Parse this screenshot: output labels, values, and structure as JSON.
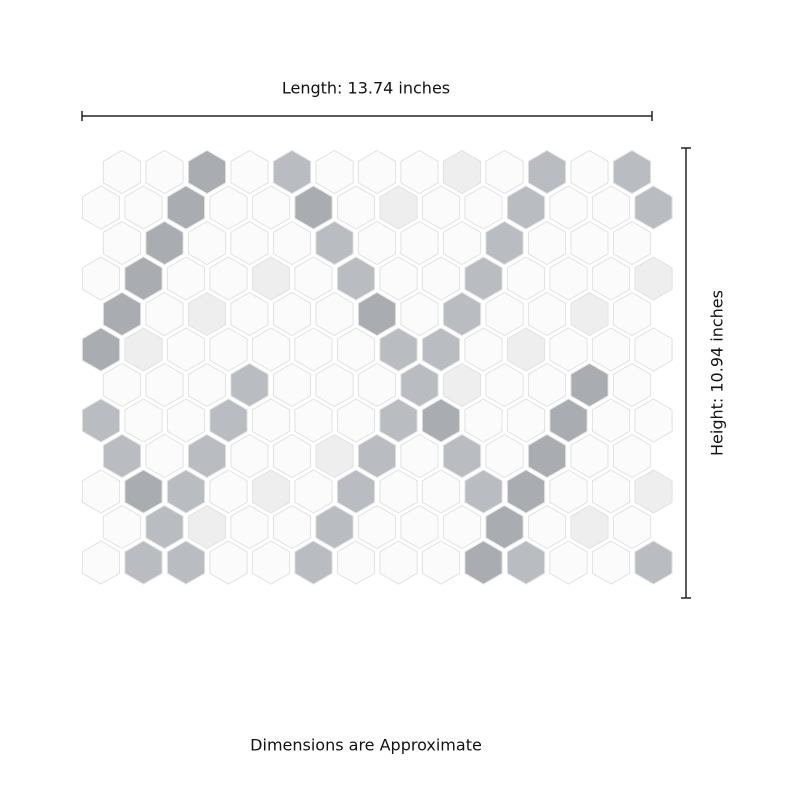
{
  "length_label": "Length: 13.74 inches",
  "height_label": "Height: 10.94 inches",
  "note": "Dimensions are Approximate"
}
